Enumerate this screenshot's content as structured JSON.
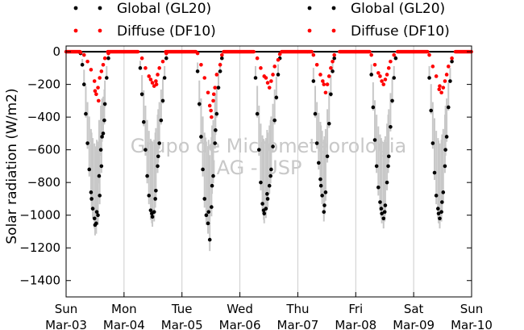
{
  "chart_data": {
    "type": "scatter",
    "title": "",
    "xlabel": "",
    "ylabel": "Solar radiation (W/m2)",
    "ylim": [
      -1500,
      0
    ],
    "xlim": [
      0,
      7
    ],
    "yticks": [
      0,
      -200,
      -400,
      -600,
      -800,
      -1000,
      -1200,
      -1400
    ],
    "xticks": [
      {
        "x": 0,
        "day": "Sun",
        "date": "Mar-03"
      },
      {
        "x": 1,
        "day": "Mon",
        "date": "Mar-04"
      },
      {
        "x": 2,
        "day": "Tue",
        "date": "Mar-05"
      },
      {
        "x": 3,
        "day": "Wed",
        "date": "Mar-06"
      },
      {
        "x": 4,
        "day": "Thu",
        "date": "Mar-07"
      },
      {
        "x": 5,
        "day": "Fri",
        "date": "Mar-08"
      },
      {
        "x": 6,
        "day": "Sat",
        "date": "Mar-09"
      },
      {
        "x": 7,
        "day": "Sun",
        "date": "Mar-10"
      }
    ],
    "grid": "vertical",
    "legend": [
      {
        "name": "Global (GL20)",
        "color": "#000000"
      },
      {
        "name": "Diffuse (DF10)",
        "color": "#ff0000"
      },
      {
        "name": "Global (GL20)",
        "color": "#000000"
      },
      {
        "name": "Diffuse (DF10)",
        "color": "#ff0000"
      }
    ],
    "legend_placement": "top, above plot",
    "watermark": [
      "Grupo de Micrometeorologia",
      "IAG - USP"
    ],
    "series": [
      {
        "name": "Global (GL20)",
        "color": "#000000",
        "points": [
          [
            0.25,
            -10
          ],
          [
            0.28,
            -80
          ],
          [
            0.31,
            -200
          ],
          [
            0.34,
            -380
          ],
          [
            0.37,
            -560
          ],
          [
            0.4,
            -720
          ],
          [
            0.43,
            -860
          ],
          [
            0.46,
            -960
          ],
          [
            0.49,
            -1020
          ],
          [
            0.52,
            -1050
          ],
          [
            0.55,
            -1000
          ],
          [
            0.58,
            -880
          ],
          [
            0.61,
            -700
          ],
          [
            0.64,
            -500
          ],
          [
            0.67,
            -320
          ],
          [
            0.7,
            -160
          ],
          [
            0.73,
            -40
          ],
          [
            0.44,
            -900
          ],
          [
            0.5,
            -1060
          ],
          [
            0.53,
            -980
          ],
          [
            0.57,
            -760
          ],
          [
            0.6,
            -600
          ],
          [
            0.62,
            -520
          ],
          [
            0.66,
            -420
          ],
          [
            1.28,
            -100
          ],
          [
            1.31,
            -260
          ],
          [
            1.34,
            -430
          ],
          [
            1.37,
            -600
          ],
          [
            1.4,
            -760
          ],
          [
            1.43,
            -880
          ],
          [
            1.46,
            -970
          ],
          [
            1.49,
            -1010
          ],
          [
            1.52,
            -980
          ],
          [
            1.55,
            -850
          ],
          [
            1.58,
            -700
          ],
          [
            1.61,
            -560
          ],
          [
            1.64,
            -420
          ],
          [
            1.67,
            -300
          ],
          [
            1.7,
            -160
          ],
          [
            1.73,
            -40
          ],
          [
            1.48,
            -990
          ],
          [
            1.54,
            -900
          ],
          [
            1.59,
            -640
          ],
          [
            2.27,
            -120
          ],
          [
            2.3,
            -320
          ],
          [
            2.33,
            -520
          ],
          [
            2.36,
            -720
          ],
          [
            2.39,
            -900
          ],
          [
            2.42,
            -1000
          ],
          [
            2.45,
            -1050
          ],
          [
            2.48,
            -1150
          ],
          [
            2.51,
            -950
          ],
          [
            2.54,
            -760
          ],
          [
            2.57,
            -560
          ],
          [
            2.6,
            -380
          ],
          [
            2.63,
            -220
          ],
          [
            2.66,
            -120
          ],
          [
            2.69,
            -40
          ],
          [
            2.46,
            -980
          ],
          [
            2.52,
            -820
          ],
          [
            2.58,
            -480
          ],
          [
            3.27,
            -160
          ],
          [
            3.3,
            -380
          ],
          [
            3.33,
            -600
          ],
          [
            3.36,
            -800
          ],
          [
            3.39,
            -930
          ],
          [
            3.42,
            -990
          ],
          [
            3.45,
            -960
          ],
          [
            3.48,
            -900
          ],
          [
            3.51,
            -820
          ],
          [
            3.54,
            -720
          ],
          [
            3.57,
            -580
          ],
          [
            3.6,
            -420
          ],
          [
            3.63,
            -280
          ],
          [
            3.66,
            -140
          ],
          [
            3.69,
            -40
          ],
          [
            3.41,
            -970
          ],
          [
            3.47,
            -870
          ],
          [
            3.53,
            -760
          ],
          [
            4.27,
            -180
          ],
          [
            4.3,
            -380
          ],
          [
            4.33,
            -560
          ],
          [
            4.36,
            -680
          ],
          [
            4.39,
            -780
          ],
          [
            4.42,
            -880
          ],
          [
            4.45,
            -980
          ],
          [
            4.48,
            -860
          ],
          [
            4.51,
            -640
          ],
          [
            4.54,
            -440
          ],
          [
            4.57,
            -260
          ],
          [
            4.6,
            -120
          ],
          [
            4.63,
            -40
          ],
          [
            4.4,
            -820
          ],
          [
            4.46,
            -940
          ],
          [
            5.27,
            -140
          ],
          [
            5.3,
            -340
          ],
          [
            5.33,
            -540
          ],
          [
            5.36,
            -700
          ],
          [
            5.39,
            -830
          ],
          [
            5.42,
            -920
          ],
          [
            5.45,
            -990
          ],
          [
            5.48,
            -1020
          ],
          [
            5.51,
            -940
          ],
          [
            5.54,
            -800
          ],
          [
            5.57,
            -640
          ],
          [
            5.6,
            -460
          ],
          [
            5.63,
            -300
          ],
          [
            5.66,
            -160
          ],
          [
            5.69,
            -40
          ],
          [
            5.44,
            -960
          ],
          [
            5.5,
            -980
          ],
          [
            5.56,
            -700
          ],
          [
            6.27,
            -160
          ],
          [
            6.3,
            -360
          ],
          [
            6.33,
            -560
          ],
          [
            6.36,
            -740
          ],
          [
            6.39,
            -880
          ],
          [
            6.42,
            -960
          ],
          [
            6.45,
            -1020
          ],
          [
            6.48,
            -980
          ],
          [
            6.51,
            -860
          ],
          [
            6.54,
            -700
          ],
          [
            6.57,
            -520
          ],
          [
            6.6,
            -340
          ],
          [
            6.63,
            -180
          ],
          [
            6.66,
            -60
          ],
          [
            6.43,
            -990
          ],
          [
            6.49,
            -920
          ],
          [
            6.55,
            -600
          ]
        ]
      },
      {
        "name": "Diffuse (DF10)",
        "color": "#ff0000",
        "points": [
          [
            0.25,
            -5
          ],
          [
            0.31,
            -20
          ],
          [
            0.37,
            -60
          ],
          [
            0.43,
            -110
          ],
          [
            0.49,
            -180
          ],
          [
            0.52,
            -260
          ],
          [
            0.55,
            -220
          ],
          [
            0.58,
            -160
          ],
          [
            0.61,
            -120
          ],
          [
            0.64,
            -80
          ],
          [
            0.67,
            -40
          ],
          [
            0.73,
            -10
          ],
          [
            0.5,
            -240
          ],
          [
            0.56,
            -300
          ],
          [
            1.31,
            -40
          ],
          [
            1.37,
            -100
          ],
          [
            1.43,
            -150
          ],
          [
            1.49,
            -190
          ],
          [
            1.52,
            -210
          ],
          [
            1.55,
            -180
          ],
          [
            1.58,
            -140
          ],
          [
            1.61,
            -100
          ],
          [
            1.67,
            -60
          ],
          [
            1.73,
            -10
          ],
          [
            1.46,
            -170
          ],
          [
            1.56,
            -200
          ],
          [
            2.27,
            -10
          ],
          [
            2.33,
            -80
          ],
          [
            2.39,
            -160
          ],
          [
            2.45,
            -250
          ],
          [
            2.48,
            -330
          ],
          [
            2.51,
            -400
          ],
          [
            2.54,
            -300
          ],
          [
            2.57,
            -220
          ],
          [
            2.6,
            -140
          ],
          [
            2.66,
            -80
          ],
          [
            2.69,
            -20
          ],
          [
            2.5,
            -360
          ],
          [
            2.55,
            -260
          ],
          [
            3.3,
            -40
          ],
          [
            3.36,
            -100
          ],
          [
            3.42,
            -150
          ],
          [
            3.48,
            -190
          ],
          [
            3.51,
            -220
          ],
          [
            3.54,
            -180
          ],
          [
            3.57,
            -140
          ],
          [
            3.6,
            -90
          ],
          [
            3.66,
            -50
          ],
          [
            3.69,
            -15
          ],
          [
            3.45,
            -160
          ],
          [
            4.27,
            -20
          ],
          [
            4.33,
            -80
          ],
          [
            4.39,
            -140
          ],
          [
            4.45,
            -200
          ],
          [
            4.48,
            -250
          ],
          [
            4.51,
            -200
          ],
          [
            4.54,
            -150
          ],
          [
            4.57,
            -100
          ],
          [
            4.6,
            -60
          ],
          [
            4.63,
            -20
          ],
          [
            4.43,
            -180
          ],
          [
            5.27,
            -20
          ],
          [
            5.33,
            -80
          ],
          [
            5.39,
            -130
          ],
          [
            5.45,
            -180
          ],
          [
            5.48,
            -200
          ],
          [
            5.51,
            -170
          ],
          [
            5.54,
            -140
          ],
          [
            5.57,
            -100
          ],
          [
            5.6,
            -60
          ],
          [
            5.66,
            -20
          ],
          [
            5.42,
            -150
          ],
          [
            6.27,
            -20
          ],
          [
            6.33,
            -90
          ],
          [
            6.39,
            -150
          ],
          [
            6.45,
            -210
          ],
          [
            6.48,
            -250
          ],
          [
            6.51,
            -220
          ],
          [
            6.54,
            -180
          ],
          [
            6.57,
            -140
          ],
          [
            6.6,
            -90
          ],
          [
            6.66,
            -40
          ],
          [
            6.44,
            -230
          ]
        ]
      }
    ]
  }
}
